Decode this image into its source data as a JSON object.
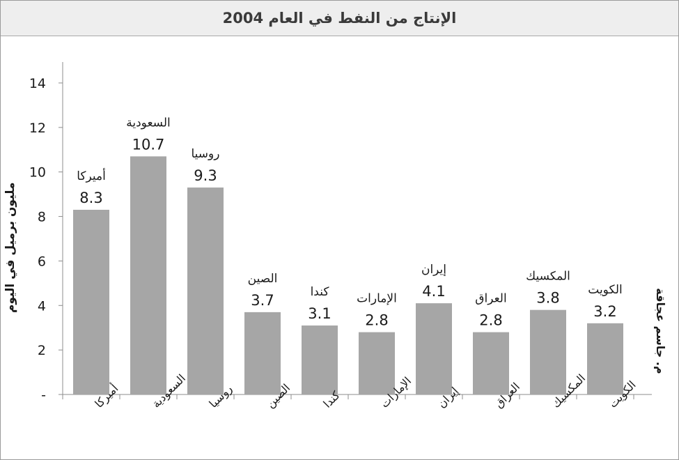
{
  "chart_data": {
    "type": "bar",
    "title": "الإنتاج من النفط في العام 2004",
    "ylabel": "مليون برميل في اليوم",
    "source": "م. جاسم عجاقة",
    "categories": [
      "أميركا",
      "السعودية",
      "روسيا",
      "الصين",
      "كندا",
      "الإمارات",
      "إيران",
      "العراق",
      "المكسيك",
      "الكويت"
    ],
    "values": [
      8.3,
      10.7,
      9.3,
      3.7,
      3.1,
      2.8,
      4.1,
      2.8,
      3.8,
      3.2
    ],
    "value_labels": [
      "8.3",
      "10.7",
      "9.3",
      "3.7",
      "3.1",
      "2.8",
      "4.1",
      "2.8",
      "3.8",
      "3.2"
    ],
    "ylim": [
      0,
      14
    ],
    "yticks": [
      0,
      2,
      4,
      6,
      8,
      10,
      12,
      14
    ],
    "ytick_labels": [
      "-",
      "2",
      "4",
      "6",
      "8",
      "10",
      "12",
      "14"
    ],
    "grid": false,
    "legend": "none",
    "bar_color": "#a6a6a6"
  }
}
